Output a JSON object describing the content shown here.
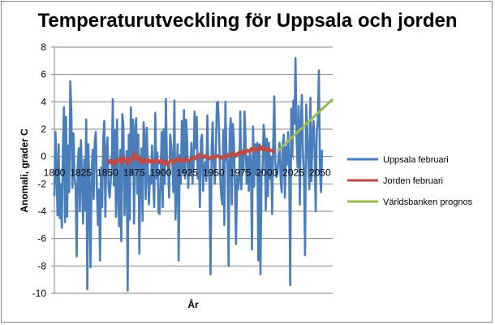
{
  "chart_data": {
    "type": "line",
    "title": "Temperaturutveckling för Uppsala och jorden",
    "xlabel": "År",
    "ylabel": "Anomali, grader C",
    "xlim": [
      1800,
      2062
    ],
    "ylim": [
      -10,
      8
    ],
    "xticks": [
      1800,
      1825,
      1850,
      1875,
      1900,
      1925,
      1950,
      1975,
      2000,
      2025,
      2050
    ],
    "yticks": [
      -10,
      -8,
      -6,
      -4,
      -2,
      0,
      2,
      4,
      6,
      8
    ],
    "grid": "horizontal",
    "legend_position": "right",
    "series": [
      {
        "name": "Uppsala februari",
        "color": "#4A7EBB",
        "x_start": 1800,
        "x_step": 1,
        "values": [
          -2.9,
          1.8,
          -1.2,
          -4.3,
          0.9,
          -4.5,
          -2.0,
          -5.2,
          0.3,
          3.6,
          -4.8,
          2.9,
          -4.4,
          0.8,
          -2.6,
          5.5,
          3.2,
          -2.3,
          1.7,
          -1.5,
          -2.2,
          -7.3,
          -0.7,
          0.6,
          -4.0,
          1.2,
          -1.6,
          -4.9,
          -0.2,
          -3.9,
          2.7,
          -9.7,
          0.9,
          -2.5,
          -8.1,
          -1.5,
          0.5,
          -3.1,
          1.1,
          1.8,
          -2.3,
          -5.0,
          -2.4,
          -7.6,
          -0.8,
          -3.7,
          1.3,
          2.6,
          -4.4,
          0.4,
          1.4,
          -2.2,
          -3.0,
          -1.8,
          -0.8,
          4.2,
          -2.1,
          1.9,
          -4.4,
          2.7,
          -2.9,
          -5.1,
          0.5,
          -6.2,
          3.1,
          2.2,
          -4.3,
          -1.9,
          0.4,
          -9.8,
          1.6,
          -4.6,
          3.6,
          -1.3,
          2.7,
          -4.9,
          2.0,
          2.8,
          -2.7,
          1.6,
          -7.1,
          -0.6,
          0.6,
          -4.7,
          2.5,
          1.4,
          -3.1,
          2.1,
          -0.9,
          -3.5,
          -1.4,
          -2.0,
          0.8,
          -1.7,
          -3.7,
          3.2,
          -1.6,
          0.3,
          -4.1,
          -4.2,
          -1.5,
          1.8,
          -3.7,
          2.0,
          -2.0,
          4.2,
          -0.6,
          -0.4,
          -3.0,
          1.6,
          0.9,
          -0.4,
          -2.6,
          4.1,
          -4.6,
          -2.0,
          0.9,
          -7.6,
          0.1,
          -2.0,
          2.6,
          -1.2,
          3.4,
          -1.6,
          2.7,
          1.2,
          -2.3,
          -0.2,
          -1.3,
          1.0,
          -2.0,
          -0.6,
          3.3,
          0.6,
          2.9,
          -1.6,
          0.2,
          -3.7,
          1.2,
          1.6,
          -2.5,
          -0.6,
          -0.4,
          -1.8,
          3.0,
          -1.1,
          -1.8,
          -8.6,
          0.5,
          2.5,
          -0.5,
          -2.0,
          0.3,
          3.9,
          4.0,
          1.9,
          -1.4,
          -2.8,
          -3.5,
          1.9,
          -5.0,
          4.0,
          0.1,
          -0.5,
          -8.0,
          1.7,
          2.8,
          -3.5,
          2.4,
          1.2,
          -2.3,
          -6.4,
          -1.5,
          -2.4,
          -1.6,
          3.3,
          -2.4,
          0.2,
          -1.0,
          3.3,
          1.2,
          -2.0,
          0.0,
          -2.5,
          0.5,
          -0.7,
          -6.8,
          2.2,
          -2.2,
          0.9,
          -1.3,
          1.0,
          -7.6,
          0.9,
          -8.6,
          -1.3,
          -0.8,
          2.3,
          1.4,
          -3.9,
          1.3,
          -2.9,
          1.0,
          -1.6,
          0.0,
          -4.2,
          1.0,
          4.4,
          -0.4,
          -1.5,
          -1.3,
          0.0,
          1.0,
          -1.7,
          -2.6,
          0.9,
          1.6,
          -3.0,
          0.7,
          -0.6,
          1.8,
          -0.5,
          -9.4,
          3.5,
          0.0,
          4.1,
          2.4,
          7.2,
          1.3,
          -0.8,
          3.7,
          -3.5,
          2.3,
          4.5,
          0.2,
          -1.5,
          -7.2,
          3.8,
          2.2,
          -0.4,
          -2.4,
          4.3,
          -1.8,
          1.6,
          2.6,
          0.4,
          -4.0,
          1.8,
          2.6,
          6.3,
          -1.0,
          -2.6,
          0.5
        ]
      },
      {
        "name": "Jorden februari",
        "color": "#BE4B48",
        "x_start": 1850,
        "x_step": 1,
        "values": [
          -0.4,
          -0.3,
          -0.5,
          -0.2,
          -0.4,
          -0.3,
          -0.6,
          -0.3,
          -0.5,
          -0.2,
          -0.4,
          -0.3,
          -0.1,
          -0.5,
          -0.2,
          0.0,
          -0.3,
          -0.4,
          -0.2,
          -0.6,
          -0.1,
          -0.4,
          -0.2,
          -0.3,
          0.1,
          0.3,
          -0.2,
          0.1,
          -0.3,
          -0.2,
          0.0,
          -0.4,
          -0.2,
          -0.5,
          -0.3,
          -0.1,
          -0.4,
          -0.3,
          -0.5,
          -0.2,
          -0.4,
          -0.3,
          -0.2,
          -0.5,
          -0.3,
          -0.4,
          -0.2,
          -0.3,
          -0.4,
          -0.5,
          -0.2,
          -0.3,
          -0.5,
          -0.4,
          -0.6,
          -0.3,
          -0.5,
          -0.7,
          -0.4,
          -0.3,
          -0.2,
          -0.4,
          -0.3,
          -0.5,
          -0.2,
          -0.1,
          -0.3,
          -0.2,
          -0.4,
          -0.2,
          -0.3,
          -0.4,
          -0.2,
          -0.1,
          -0.3,
          -0.2,
          -0.4,
          -0.3,
          -0.2,
          -0.1,
          -0.2,
          0.0,
          -0.1,
          -0.2,
          0.1,
          0.0,
          -0.1,
          0.0,
          0.2,
          0.1,
          0.0,
          -0.1,
          0.1,
          0.0,
          -0.1,
          0.0,
          -0.2,
          -0.1,
          0.0,
          0.1,
          -0.1,
          0.0,
          -0.1,
          0.0,
          0.1,
          0.0,
          -0.2,
          0.0,
          -0.1,
          0.0,
          0.1,
          0.0,
          -0.1,
          0.0,
          0.2,
          0.1,
          0.0,
          0.2,
          0.3,
          0.1,
          0.2,
          0.0,
          0.2,
          0.3,
          0.1,
          0.4,
          0.2,
          0.3,
          0.5,
          0.2,
          0.4,
          0.3,
          0.5,
          0.4,
          0.3,
          0.6,
          0.5,
          0.4,
          0.7,
          0.5,
          0.6,
          0.4,
          0.5,
          0.6,
          0.8,
          0.5,
          0.6,
          0.4,
          0.7,
          0.5,
          0.6,
          0.4,
          0.6,
          0.5,
          0.4,
          0.5,
          0.3,
          0.4
        ]
      },
      {
        "name": "Världsbanken prognos",
        "color": "#98B954",
        "x": [
          2010,
          2062
        ],
        "values": [
          0.4,
          4.2
        ]
      }
    ]
  }
}
